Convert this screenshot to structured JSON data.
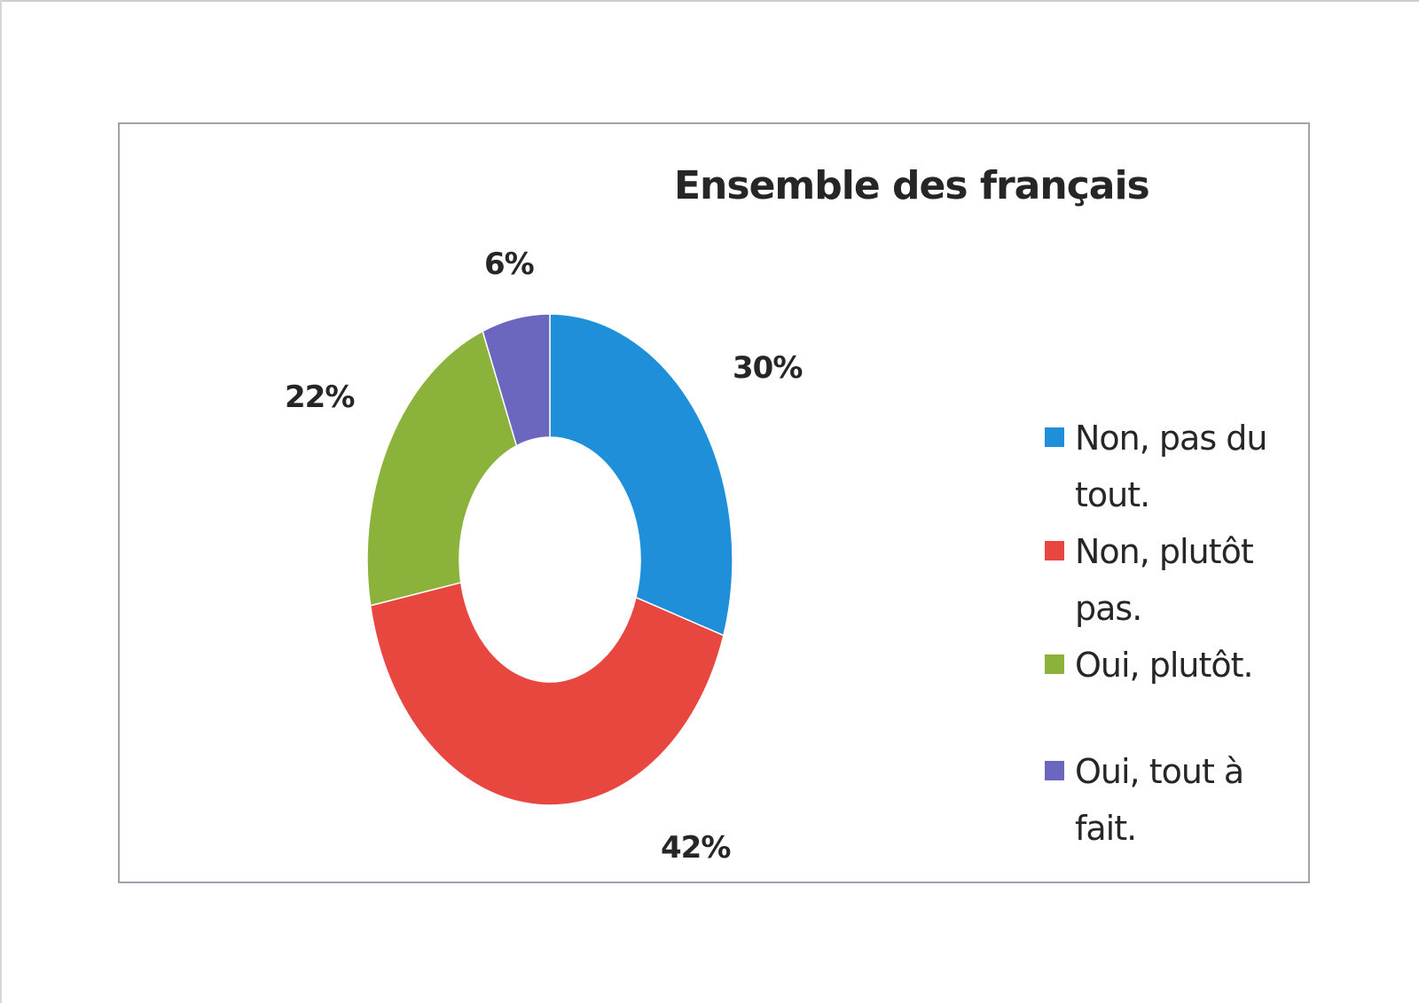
{
  "chart_data": {
    "type": "donut",
    "title": "Ensemble des français",
    "categories": [
      "Non, pas du tout.",
      "Non, plutôt pas.",
      "Oui, plutôt.",
      "Oui, tout à fait."
    ],
    "values": [
      30,
      42,
      22,
      6
    ],
    "data_labels": [
      "30%",
      "42%",
      "22%",
      "6%"
    ],
    "colors": [
      "#1e8fd8",
      "#e8473f",
      "#8bb33c",
      "#6b66be"
    ],
    "legend_position": "right",
    "grid": false
  }
}
